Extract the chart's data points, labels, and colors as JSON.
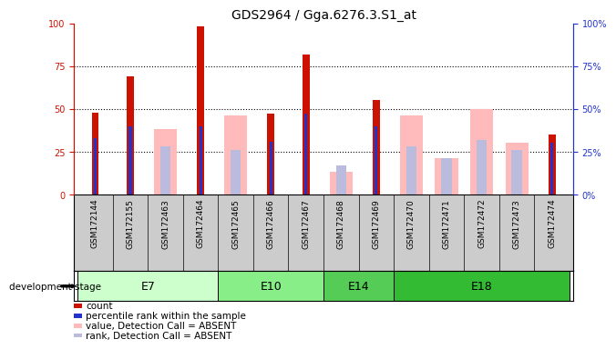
{
  "title": "GDS2964 / Gga.6276.3.S1_at",
  "samples": [
    "GSM172144",
    "GSM172155",
    "GSM172463",
    "GSM172464",
    "GSM172465",
    "GSM172466",
    "GSM172467",
    "GSM172468",
    "GSM172469",
    "GSM172470",
    "GSM172471",
    "GSM172472",
    "GSM172473",
    "GSM172474"
  ],
  "stages": [
    {
      "label": "E7",
      "start": 0,
      "end": 4,
      "color": "#ccffcc"
    },
    {
      "label": "E10",
      "start": 4,
      "end": 7,
      "color": "#88ee88"
    },
    {
      "label": "E14",
      "start": 7,
      "end": 9,
      "color": "#55cc55"
    },
    {
      "label": "E18",
      "start": 9,
      "end": 14,
      "color": "#33bb33"
    }
  ],
  "red_bars": [
    48,
    69,
    0,
    98,
    0,
    47,
    82,
    0,
    55,
    0,
    0,
    0,
    0,
    35
  ],
  "blue_bars": [
    33,
    40,
    0,
    40,
    0,
    31,
    47,
    0,
    40,
    0,
    0,
    0,
    0,
    30
  ],
  "pink_bars": [
    0,
    0,
    38,
    0,
    46,
    0,
    0,
    13,
    0,
    46,
    21,
    50,
    30,
    0
  ],
  "lightblue_bars": [
    0,
    0,
    28,
    0,
    26,
    0,
    0,
    17,
    0,
    28,
    21,
    32,
    26,
    0
  ],
  "red_color": "#cc1100",
  "blue_color": "#2233cc",
  "pink_color": "#ffbbbb",
  "lb_color": "#bbbbdd",
  "bg_color": "#cccccc",
  "ylim": [
    0,
    100
  ],
  "yticks": [
    0,
    25,
    50,
    75,
    100
  ],
  "ytick_labels_right": [
    "0%",
    "25%",
    "50%",
    "75%",
    "100%"
  ],
  "dotted_lines": [
    25,
    50,
    75
  ],
  "bw_pink": 0.65,
  "bw_lb": 0.3,
  "bw_red": 0.2,
  "bw_blue": 0.08,
  "legend": [
    {
      "label": "count",
      "color": "#cc1100"
    },
    {
      "label": "percentile rank within the sample",
      "color": "#2233cc"
    },
    {
      "label": "value, Detection Call = ABSENT",
      "color": "#ffbbbb"
    },
    {
      "label": "rank, Detection Call = ABSENT",
      "color": "#bbbbdd"
    }
  ],
  "dev_stage_label": "development stage"
}
